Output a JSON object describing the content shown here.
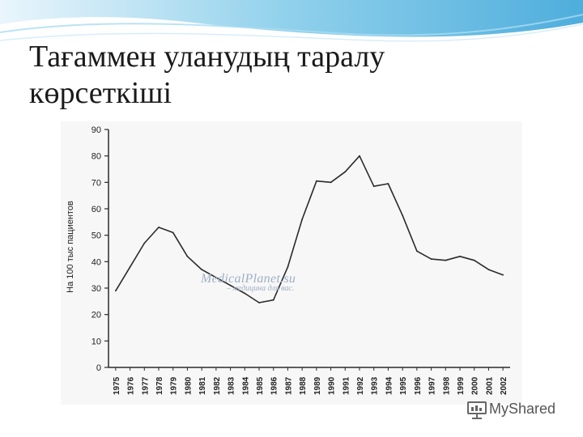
{
  "slide": {
    "title_line1": "Тағаммен уланудың таралу",
    "title_line2": "көрсеткіші"
  },
  "watermark": {
    "title": "MedicalPlanet.su",
    "subtitle": "– медицина для вас."
  },
  "brand": {
    "name": "MyShared"
  },
  "colors": {
    "line": "#2b2b2b",
    "accent": "#2fa0d8",
    "watermark": "#9fb0c4"
  },
  "chart_data": {
    "type": "line",
    "title": "",
    "xlabel": "",
    "ylabel": "На 100 тыс пациентов",
    "ylim": [
      0,
      90
    ],
    "yticks": [
      0,
      10,
      20,
      30,
      40,
      50,
      60,
      70,
      80,
      90
    ],
    "grid": false,
    "x": [
      "1975",
      "1976",
      "1977",
      "1978",
      "1979",
      "1980",
      "1981",
      "1982",
      "1983",
      "1984",
      "1985",
      "1986",
      "1987",
      "1988",
      "1989",
      "1990",
      "1991",
      "1992",
      "1993",
      "1994",
      "1995",
      "1996",
      "1997",
      "1998",
      "1999",
      "2000",
      "2001",
      "2002"
    ],
    "values": [
      29,
      38,
      47,
      53,
      51,
      42,
      37,
      34,
      31,
      28,
      24.5,
      25.5,
      38,
      56,
      70.5,
      70,
      74,
      80,
      68.5,
      69.5,
      57.5,
      44,
      41,
      40.5,
      42,
      40.5,
      37,
      35
    ]
  }
}
